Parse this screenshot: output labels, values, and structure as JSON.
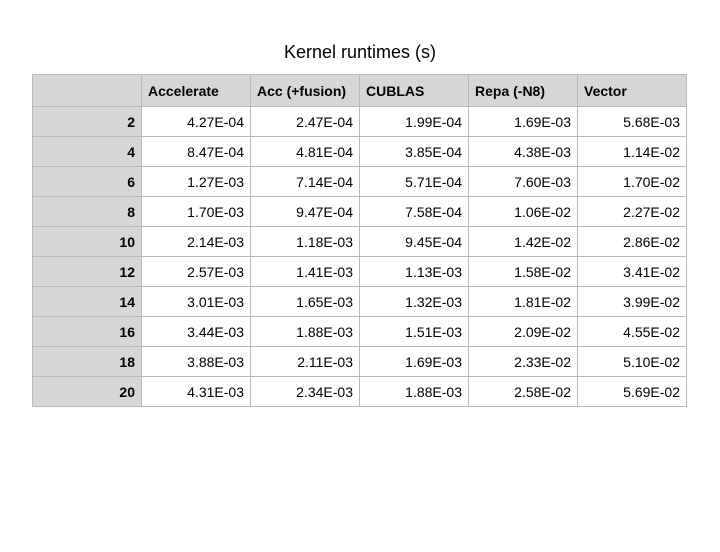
{
  "chart_data": {
    "type": "table",
    "title": "Kernel runtimes (s)",
    "corner": "",
    "columns": [
      "Accelerate",
      "Acc (+fusion)",
      "CUBLAS",
      "Repa (-N8)",
      "Vector"
    ],
    "rows": [
      {
        "label": "2",
        "values": [
          "4.27E-04",
          "2.47E-04",
          "1.99E-04",
          "1.69E-03",
          "5.68E-03"
        ]
      },
      {
        "label": "4",
        "values": [
          "8.47E-04",
          "4.81E-04",
          "3.85E-04",
          "4.38E-03",
          "1.14E-02"
        ]
      },
      {
        "label": "6",
        "values": [
          "1.27E-03",
          "7.14E-04",
          "5.71E-04",
          "7.60E-03",
          "1.70E-02"
        ]
      },
      {
        "label": "8",
        "values": [
          "1.70E-03",
          "9.47E-04",
          "7.58E-04",
          "1.06E-02",
          "2.27E-02"
        ]
      },
      {
        "label": "10",
        "values": [
          "2.14E-03",
          "1.18E-03",
          "9.45E-04",
          "1.42E-02",
          "2.86E-02"
        ]
      },
      {
        "label": "12",
        "values": [
          "2.57E-03",
          "1.41E-03",
          "1.13E-03",
          "1.58E-02",
          "3.41E-02"
        ]
      },
      {
        "label": "14",
        "values": [
          "3.01E-03",
          "1.65E-03",
          "1.32E-03",
          "1.81E-02",
          "3.99E-02"
        ]
      },
      {
        "label": "16",
        "values": [
          "3.44E-03",
          "1.88E-03",
          "1.51E-03",
          "2.09E-02",
          "4.55E-02"
        ]
      },
      {
        "label": "18",
        "values": [
          "3.88E-03",
          "2.11E-03",
          "1.69E-03",
          "2.33E-02",
          "5.10E-02"
        ]
      },
      {
        "label": "20",
        "values": [
          "4.31E-03",
          "2.34E-03",
          "1.88E-03",
          "2.58E-02",
          "5.69E-02"
        ]
      }
    ]
  },
  "colors": {
    "header_bg": "#d6d6d6",
    "border": "#b8b8b8"
  }
}
